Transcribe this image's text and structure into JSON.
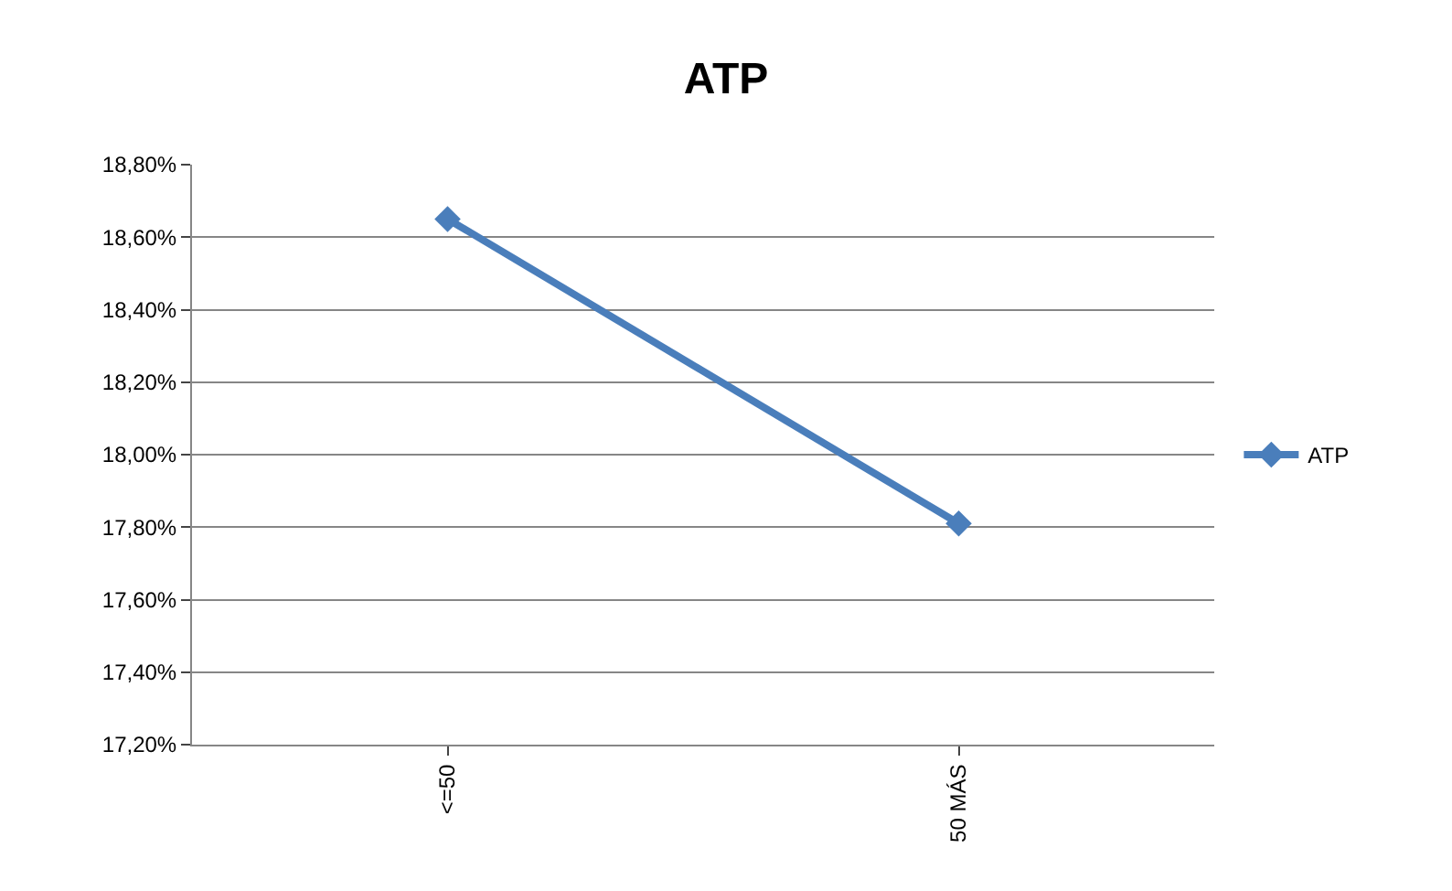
{
  "chart_data": {
    "type": "line",
    "title": "ATP",
    "categories": [
      "<=50",
      "50 MÁS"
    ],
    "series": [
      {
        "name": "ATP",
        "color": "#4a7ebb",
        "values": [
          18.65,
          17.81
        ]
      }
    ],
    "ylim": [
      17.2,
      18.8
    ],
    "yticks": [
      {
        "value": 17.2,
        "label": "17,20%"
      },
      {
        "value": 17.4,
        "label": "17,40%"
      },
      {
        "value": 17.6,
        "label": "17,60%"
      },
      {
        "value": 17.8,
        "label": "17,80%"
      },
      {
        "value": 18.0,
        "label": "18,00%"
      },
      {
        "value": 18.2,
        "label": "18,20%"
      },
      {
        "value": 18.4,
        "label": "18,40%"
      },
      {
        "value": 18.6,
        "label": "18,60%"
      },
      {
        "value": 18.8,
        "label": "18,80%"
      }
    ],
    "grid": "y",
    "legend": "right",
    "marker": "diamond",
    "line_style": "solid"
  }
}
